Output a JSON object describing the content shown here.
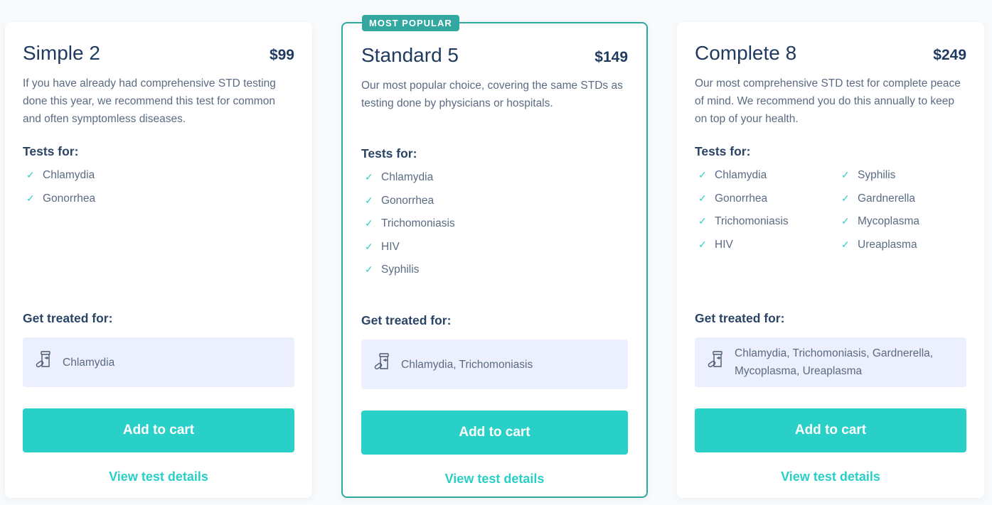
{
  "plans": [
    {
      "name": "Simple 2",
      "price": "$99",
      "description": "If you have already had comprehensive STD testing done this year, we recommend this test for common and often symptomless diseases.",
      "tests_heading": "Tests for:",
      "tests": [
        "Chlamydia",
        "Gonorrhea"
      ],
      "treated_heading": "Get treated for:",
      "treated": "Chlamydia",
      "cta": "Add to cart",
      "link": "View test details"
    },
    {
      "badge": "MOST POPULAR",
      "name": "Standard 5",
      "price": "$149",
      "description": "Our most popular choice, covering the same STDs as testing done by physicians or hospitals.",
      "tests_heading": "Tests for:",
      "tests": [
        "Chlamydia",
        "Gonorrhea",
        "Trichomoniasis",
        "HIV",
        "Syphilis"
      ],
      "treated_heading": "Get treated for:",
      "treated": "Chlamydia, Trichomoniasis",
      "cta": "Add to cart",
      "link": "View test details"
    },
    {
      "name": "Complete 8",
      "price": "$249",
      "description": "Our most comprehensive STD test for complete peace of mind. We recommend you do this annually to keep on top of your health.",
      "tests_heading": "Tests for:",
      "tests": [
        "Chlamydia",
        "Gonorrhea",
        "Trichomoniasis",
        "HIV",
        "Syphilis",
        "Gardnerella",
        "Mycoplasma",
        "Ureaplasma"
      ],
      "treated_heading": "Get treated for:",
      "treated": "Chlamydia, Trichomoniasis, Gardnerella, Mycoplasma, Ureaplasma",
      "cta": "Add to cart",
      "link": "View test details"
    }
  ],
  "colors": {
    "accent": "#29d0c8",
    "badge": "#33a8a0",
    "title": "#1f3a5f",
    "treat_bg": "#eceffd"
  },
  "icons": {
    "check": "check-icon",
    "treatment": "medicine-bottle-icon"
  }
}
